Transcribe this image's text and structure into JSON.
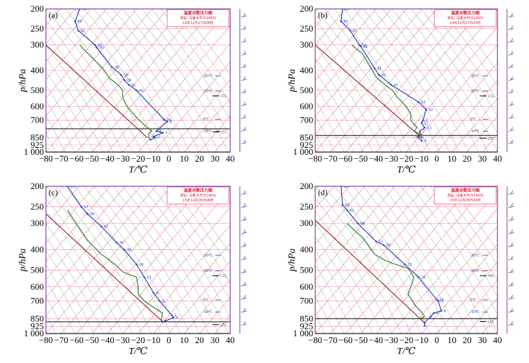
{
  "colors": {
    "temperature": "#2942b5",
    "dewpoint": "#2e7d32",
    "parcel": "#8b1a1a",
    "isotherm": "#f08aa8",
    "adiabat": "#a9c2a9",
    "frame": "#7b3fa0",
    "legend": "#d61b3a",
    "wind": "#3b5fa8"
  },
  "chart_data": [
    {
      "type": "line",
      "panel": "(a)",
      "xlabel": "T/℃",
      "ylabel": "p/hPa",
      "x_ticks": [
        "−80",
        "−70",
        "−60",
        "−50",
        "−40",
        "−30",
        "−20",
        "−10",
        "0",
        "10",
        "20",
        "30",
        "40"
      ],
      "y_ticks": [
        "200",
        "250",
        "300",
        "400",
        "500",
        "600",
        "700",
        "850",
        "925",
        "1 000"
      ],
      "xlim": [
        -80,
        40
      ],
      "ylim": [
        1000,
        200
      ],
      "legend": {
        "title": "温度对数压力图",
        "line1": "测站: 乌鲁木齐(51463)",
        "line2": "14年12月27日08时"
      },
      "annotations": [
        "CCL",
        "LFC",
        "-30℃",
        "-20℃",
        "-10℃",
        "0℃"
      ],
      "lower_line_p": 770,
      "series": [
        {
          "name": "temperature",
          "points": [
            [
              -58,
              200
            ],
            [
              -61,
              230
            ],
            [
              -59,
              255
            ],
            [
              -48,
              300
            ],
            [
              -47,
              308
            ],
            [
              -37,
              385
            ],
            [
              -31,
              420
            ],
            [
              -29,
              445
            ],
            [
              -26,
              470
            ],
            [
              -21,
              500
            ],
            [
              -3,
              695
            ],
            [
              -1,
              710
            ],
            [
              -8,
              790
            ],
            [
              -4,
              805
            ],
            [
              -10,
              840
            ],
            [
              -9,
              850
            ],
            [
              -12,
              870
            ]
          ],
          "labels": [
            "-54",
            "-65",
            "-62",
            "-43",
            "-50",
            "-35",
            "-38",
            "-28",
            "-31",
            "-31",
            "-26",
            "-8",
            "-9",
            "-7",
            "-12"
          ]
        },
        {
          "name": "dewpoint",
          "points": [
            [
              -58,
              300
            ],
            [
              -51,
              340
            ],
            [
              -43,
              390
            ],
            [
              -38,
              440
            ],
            [
              -33,
              470
            ],
            [
              -30,
              500
            ],
            [
              -30,
              540
            ],
            [
              -27,
              600
            ],
            [
              -21,
              680
            ],
            [
              -14,
              760
            ],
            [
              -11,
              790
            ],
            [
              -13,
              810
            ],
            [
              -13,
              860
            ]
          ],
          "labels": []
        },
        {
          "name": "parcel",
          "points": [
            [
              -80,
              300
            ],
            [
              -14,
              850
            ]
          ],
          "labels": []
        }
      ]
    },
    {
      "type": "line",
      "panel": "(b)",
      "xlabel": "T/℃",
      "ylabel": "p/hPa",
      "x_ticks": [
        "−80",
        "−70",
        "−60",
        "−50",
        "−40",
        "−30",
        "−20",
        "−10",
        "0",
        "10",
        "20",
        "30",
        "40"
      ],
      "y_ticks": [
        "200",
        "250",
        "300",
        "400",
        "500",
        "600",
        "700",
        "850",
        "925",
        "1 000"
      ],
      "xlim": [
        -80,
        40
      ],
      "ylim": [
        1000,
        200
      ],
      "legend": {
        "title": "温度对数压力图",
        "line1": "测站: 乌鲁木齐(51463)",
        "line2": "14年12月27日20时"
      },
      "annotations": [
        "CCL",
        "LFC",
        "-30℃",
        "-20℃",
        "-10℃",
        "0℃"
      ],
      "lower_line_p": 830,
      "series": [
        {
          "name": "temperature",
          "points": [
            [
              -62,
              200
            ],
            [
              -63,
              230
            ],
            [
              -57,
              255
            ],
            [
              -51,
              300
            ],
            [
              -50,
              305
            ],
            [
              -41,
              390
            ],
            [
              -38,
              420
            ],
            [
              -30,
              470
            ],
            [
              -12,
              570
            ],
            [
              -7,
              620
            ],
            [
              -9,
              700
            ],
            [
              -10,
              720
            ],
            [
              -8,
              760
            ],
            [
              -11,
              790
            ],
            [
              -12,
              850
            ],
            [
              -10,
              880
            ]
          ],
          "labels": [
            "-63",
            "-63",
            "-61",
            "-54",
            "-56",
            "-43",
            "-45",
            "-41",
            "-33",
            "-12",
            "-7",
            "-12",
            "-11",
            "-7",
            "-8",
            "-9"
          ]
        },
        {
          "name": "dewpoint",
          "points": [
            [
              -56,
              300
            ],
            [
              -49,
              330
            ],
            [
              -44,
              380
            ],
            [
              -40,
              430
            ],
            [
              -34,
              470
            ],
            [
              -29,
              500
            ],
            [
              -26,
              540
            ],
            [
              -20,
              600
            ],
            [
              -17,
              650
            ],
            [
              -17,
              700
            ],
            [
              -13,
              760
            ],
            [
              -15,
              790
            ],
            [
              -10,
              820
            ],
            [
              -14,
              850
            ]
          ],
          "labels": []
        },
        {
          "name": "parcel",
          "points": [
            [
              -80,
              300
            ],
            [
              -10,
              850
            ]
          ],
          "labels": []
        }
      ]
    },
    {
      "type": "line",
      "panel": "(c)",
      "xlabel": "T/℃",
      "ylabel": "p/hPa",
      "x_ticks": [
        "−80",
        "−70",
        "−60",
        "−50",
        "−40",
        "−30",
        "−20",
        "−10",
        "0",
        "10",
        "20",
        "30",
        "40"
      ],
      "y_ticks": [
        "200",
        "250",
        "300",
        "400",
        "500",
        "600",
        "700",
        "850",
        "925",
        "1 000"
      ],
      "xlim": [
        -80,
        40
      ],
      "ylim": [
        1000,
        200
      ],
      "legend": {
        "title": "温度对数压力图",
        "line1": "测站: 乌鲁木齐(51463)",
        "line2": "15年12月28日08时"
      },
      "annotations": [
        "CCL",
        "LFC",
        "-30℃",
        "-20℃",
        "-10℃",
        "0℃"
      ],
      "lower_line_p": 880,
      "series": [
        {
          "name": "temperature",
          "points": [
            [
              -66,
              200
            ],
            [
              -57,
              250
            ],
            [
              -53,
              270
            ],
            [
              -44,
              310
            ],
            [
              -34,
              370
            ],
            [
              -29,
              400
            ],
            [
              -21,
              470
            ],
            [
              -16,
              540
            ],
            [
              -10,
              640
            ],
            [
              -6,
              700
            ],
            [
              2,
              820
            ],
            [
              3,
              840
            ],
            [
              -2,
              870
            ],
            [
              -4,
              880
            ]
          ],
          "labels": [
            "-63",
            "-57",
            "-56",
            "-47",
            "-34",
            "-30",
            "-18",
            "-12",
            "-8",
            "-5",
            "-5",
            "-4"
          ]
        },
        {
          "name": "dewpoint",
          "points": [
            [
              -66,
              260
            ],
            [
              -59,
              310
            ],
            [
              -53,
              360
            ],
            [
              -44,
              420
            ],
            [
              -35,
              470
            ],
            [
              -30,
              510
            ],
            [
              -21,
              540
            ],
            [
              -20,
              600
            ],
            [
              -20,
              650
            ],
            [
              -16,
              700
            ],
            [
              -10,
              750
            ],
            [
              -4,
              800
            ],
            [
              -5,
              860
            ],
            [
              -4,
              880
            ]
          ],
          "labels": []
        },
        {
          "name": "parcel",
          "points": [
            [
              -80,
              270
            ],
            [
              -4,
              880
            ]
          ],
          "labels": []
        }
      ]
    },
    {
      "type": "line",
      "panel": "(d)",
      "xlabel": "T/℃",
      "ylabel": "p/hPa",
      "x_ticks": [
        "−80",
        "−70",
        "−60",
        "−50",
        "−40",
        "−30",
        "−20",
        "−10",
        "0",
        "10",
        "20",
        "30",
        "40"
      ],
      "y_ticks": [
        "200",
        "250",
        "300",
        "400",
        "500",
        "600",
        "700",
        "850",
        "925",
        "1 000"
      ],
      "xlim": [
        -80,
        40
      ],
      "ylim": [
        1000,
        200
      ],
      "legend": {
        "title": "温度对数压力图",
        "line1": "测站: 乌鲁木齐(51463)",
        "line2": "15年12月28日20时"
      },
      "annotations": [
        "PBC",
        "LFC",
        "-30℃",
        "-20℃",
        "-10℃",
        "0℃"
      ],
      "lower_line_p": 850,
      "series": [
        {
          "name": "temperature",
          "points": [
            [
              -63,
              200
            ],
            [
              -62,
              245
            ],
            [
              -59,
              260
            ],
            [
              -52,
              300
            ],
            [
              -40,
              365
            ],
            [
              -35,
              380
            ],
            [
              -21,
              470
            ],
            [
              -12,
              540
            ],
            [
              0,
              690
            ],
            [
              1,
              700
            ],
            [
              3,
              780
            ],
            [
              -2,
              800
            ],
            [
              -4,
              830
            ],
            [
              -8,
              890
            ],
            [
              -8,
              920
            ]
          ],
          "labels": [
            "-61",
            "-62",
            "-61",
            "-58",
            "-51",
            "-39",
            "-33",
            "-16",
            "-13",
            "-7",
            "-6",
            "-5"
          ]
        },
        {
          "name": "dewpoint",
          "points": [
            [
              -59,
              300
            ],
            [
              -49,
              350
            ],
            [
              -41,
              420
            ],
            [
              -34,
              450
            ],
            [
              -27,
              470
            ],
            [
              -19,
              490
            ],
            [
              -15,
              540
            ],
            [
              -17,
              600
            ],
            [
              -19,
              650
            ],
            [
              -14,
              740
            ],
            [
              -10,
              790
            ],
            [
              -8,
              830
            ],
            [
              -11,
              850
            ],
            [
              -8,
              890
            ]
          ],
          "labels": []
        },
        {
          "name": "parcel",
          "points": [
            [
              -80,
              290
            ],
            [
              -8,
              890
            ]
          ],
          "labels": []
        }
      ]
    }
  ]
}
